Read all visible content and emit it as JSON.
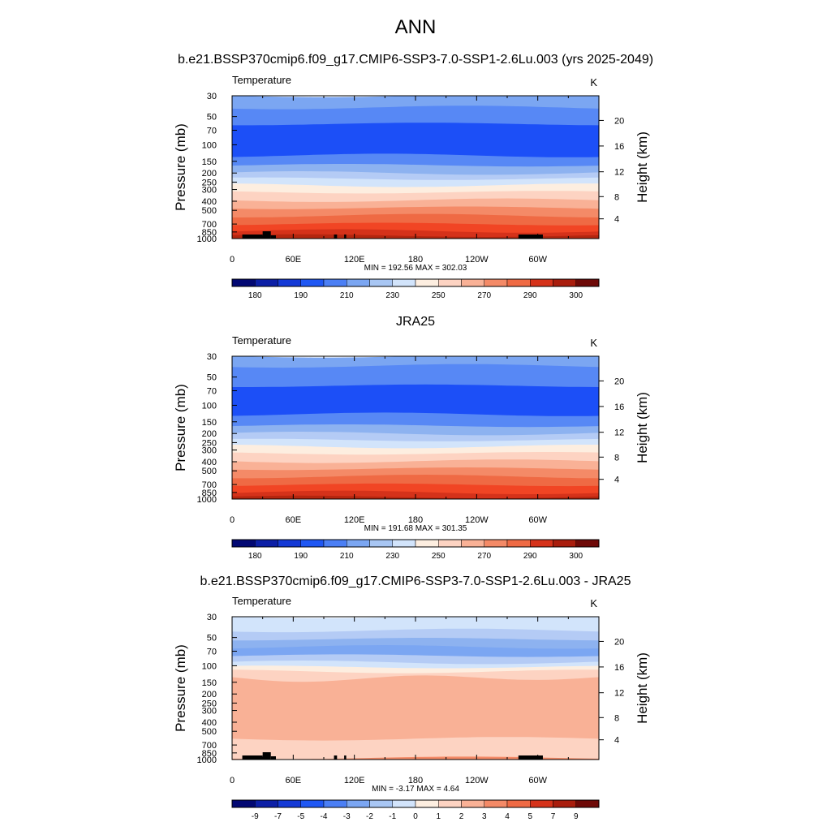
{
  "title": "ANN",
  "chart_data": [
    {
      "type": "heatmap",
      "subtitle": "b.e21.BSSP370cmip6.f09_g17.CMIP6-SSP3-7.0-SSP1-2.6Lu.003 (yrs 2025-2049)",
      "label_left": "Temperature",
      "label_right": "K",
      "ylabel": "Pressure (mb)",
      "ylabel_right": "Height (km)",
      "x_ticks": [
        "0",
        "60E",
        "120E",
        "180",
        "120W",
        "60W"
      ],
      "y_ticks": [
        "30",
        "50",
        "70",
        "100",
        "150",
        "200",
        "250",
        "300",
        "400",
        "500",
        "700",
        "850",
        "1000"
      ],
      "height_ticks": [
        "20",
        "16",
        "12",
        "8",
        "4"
      ],
      "minmax": "MIN = 192.56  MAX = 302.03",
      "min": 192.56,
      "max": 302.03,
      "colorbar_labels": [
        "180",
        "190",
        "210",
        "230",
        "250",
        "270",
        "290",
        "300"
      ],
      "bands": [
        {
          "p": 30,
          "c": "#7ba6f2"
        },
        {
          "p": 40,
          "c": "#5788f5"
        },
        {
          "p": 60,
          "c": "#1c4ff7"
        },
        {
          "p": 130,
          "c": "#5788f5"
        },
        {
          "p": 165,
          "c": "#8db2f0"
        },
        {
          "p": 200,
          "c": "#b4cbf5"
        },
        {
          "p": 230,
          "c": "#d2e4fb"
        },
        {
          "p": 270,
          "c": "#fdeee0"
        },
        {
          "p": 320,
          "c": "#fdd3c2"
        },
        {
          "p": 390,
          "c": "#f9b196"
        },
        {
          "p": 470,
          "c": "#f48a67"
        },
        {
          "p": 570,
          "c": "#ef6a44"
        },
        {
          "p": 700,
          "c": "#f14524"
        },
        {
          "p": 830,
          "c": "#d5321a"
        },
        {
          "p": 930,
          "c": "#b4260f"
        }
      ],
      "terrain": true
    },
    {
      "type": "heatmap",
      "subtitle": "JRA25",
      "label_left": "Temperature",
      "label_right": "K",
      "ylabel": "Pressure (mb)",
      "ylabel_right": "Height (km)",
      "x_ticks": [
        "0",
        "60E",
        "120E",
        "180",
        "120W",
        "60W"
      ],
      "y_ticks": [
        "30",
        "50",
        "70",
        "100",
        "150",
        "200",
        "250",
        "300",
        "400",
        "500",
        "700",
        "850",
        "1000"
      ],
      "height_ticks": [
        "20",
        "16",
        "12",
        "8",
        "4"
      ],
      "minmax": "MIN = 191.68  MAX = 301.35",
      "min": 191.68,
      "max": 301.35,
      "colorbar_labels": [
        "180",
        "190",
        "210",
        "230",
        "250",
        "270",
        "290",
        "300"
      ],
      "bands": [
        {
          "p": 30,
          "c": "#7ba6f2"
        },
        {
          "p": 38,
          "c": "#5788f5"
        },
        {
          "p": 62,
          "c": "#1c4ff7"
        },
        {
          "p": 125,
          "c": "#5788f5"
        },
        {
          "p": 165,
          "c": "#8db2f0"
        },
        {
          "p": 200,
          "c": "#b4cbf5"
        },
        {
          "p": 235,
          "c": "#d2e4fb"
        },
        {
          "p": 275,
          "c": "#fdeee0"
        },
        {
          "p": 325,
          "c": "#fdd3c2"
        },
        {
          "p": 395,
          "c": "#f9b196"
        },
        {
          "p": 475,
          "c": "#f48a67"
        },
        {
          "p": 575,
          "c": "#ef6a44"
        },
        {
          "p": 705,
          "c": "#f14524"
        },
        {
          "p": 850,
          "c": "#d5321a"
        },
        {
          "p": 950,
          "c": "#b4260f"
        }
      ],
      "terrain": false
    },
    {
      "type": "heatmap",
      "subtitle": "b.e21.BSSP370cmip6.f09_g17.CMIP6-SSP3-7.0-SSP1-2.6Lu.003 - JRA25",
      "label_left": "Temperature",
      "label_right": "K",
      "ylabel": "Pressure (mb)",
      "ylabel_right": "Height (km)",
      "x_ticks": [
        "0",
        "60E",
        "120E",
        "180",
        "120W",
        "60W"
      ],
      "y_ticks": [
        "30",
        "50",
        "70",
        "100",
        "150",
        "200",
        "250",
        "300",
        "400",
        "500",
        "700",
        "850",
        "1000"
      ],
      "height_ticks": [
        "20",
        "16",
        "12",
        "8",
        "4"
      ],
      "minmax": "MIN =  -3.17  MAX =   4.64",
      "min": -3.17,
      "max": 4.64,
      "colorbar_labels": [
        "-9",
        "-7",
        "-5",
        "-4",
        "-3",
        "-2",
        "-1",
        "0",
        "1",
        "2",
        "3",
        "4",
        "5",
        "7",
        "9"
      ],
      "bands": [
        {
          "p": 30,
          "c": "#d2e4fb"
        },
        {
          "p": 42,
          "c": "#b4cbf5"
        },
        {
          "p": 52,
          "c": "#8db2f0"
        },
        {
          "p": 63,
          "c": "#7ba6f2"
        },
        {
          "p": 78,
          "c": "#b4cbf5"
        },
        {
          "p": 92,
          "c": "#d2e4fb"
        },
        {
          "p": 103,
          "c": "#fdeee0"
        },
        {
          "p": 115,
          "c": "#fdd3c2"
        },
        {
          "p": 135,
          "c": "#f9b196"
        },
        {
          "p": 600,
          "c": "#fdd3c2"
        },
        {
          "p": 960,
          "c": "#f48a67"
        }
      ],
      "terrain": true
    }
  ],
  "colorbar_colors": [
    "#020873",
    "#0c1fa6",
    "#1439d6",
    "#1f57f3",
    "#4b7ff5",
    "#7ba6f2",
    "#a8c6f3",
    "#d2e4fb",
    "#fdeee0",
    "#fdd3c2",
    "#f9b196",
    "#f48a67",
    "#ef6a44",
    "#d5321a",
    "#a91d0d",
    "#6e0907"
  ]
}
